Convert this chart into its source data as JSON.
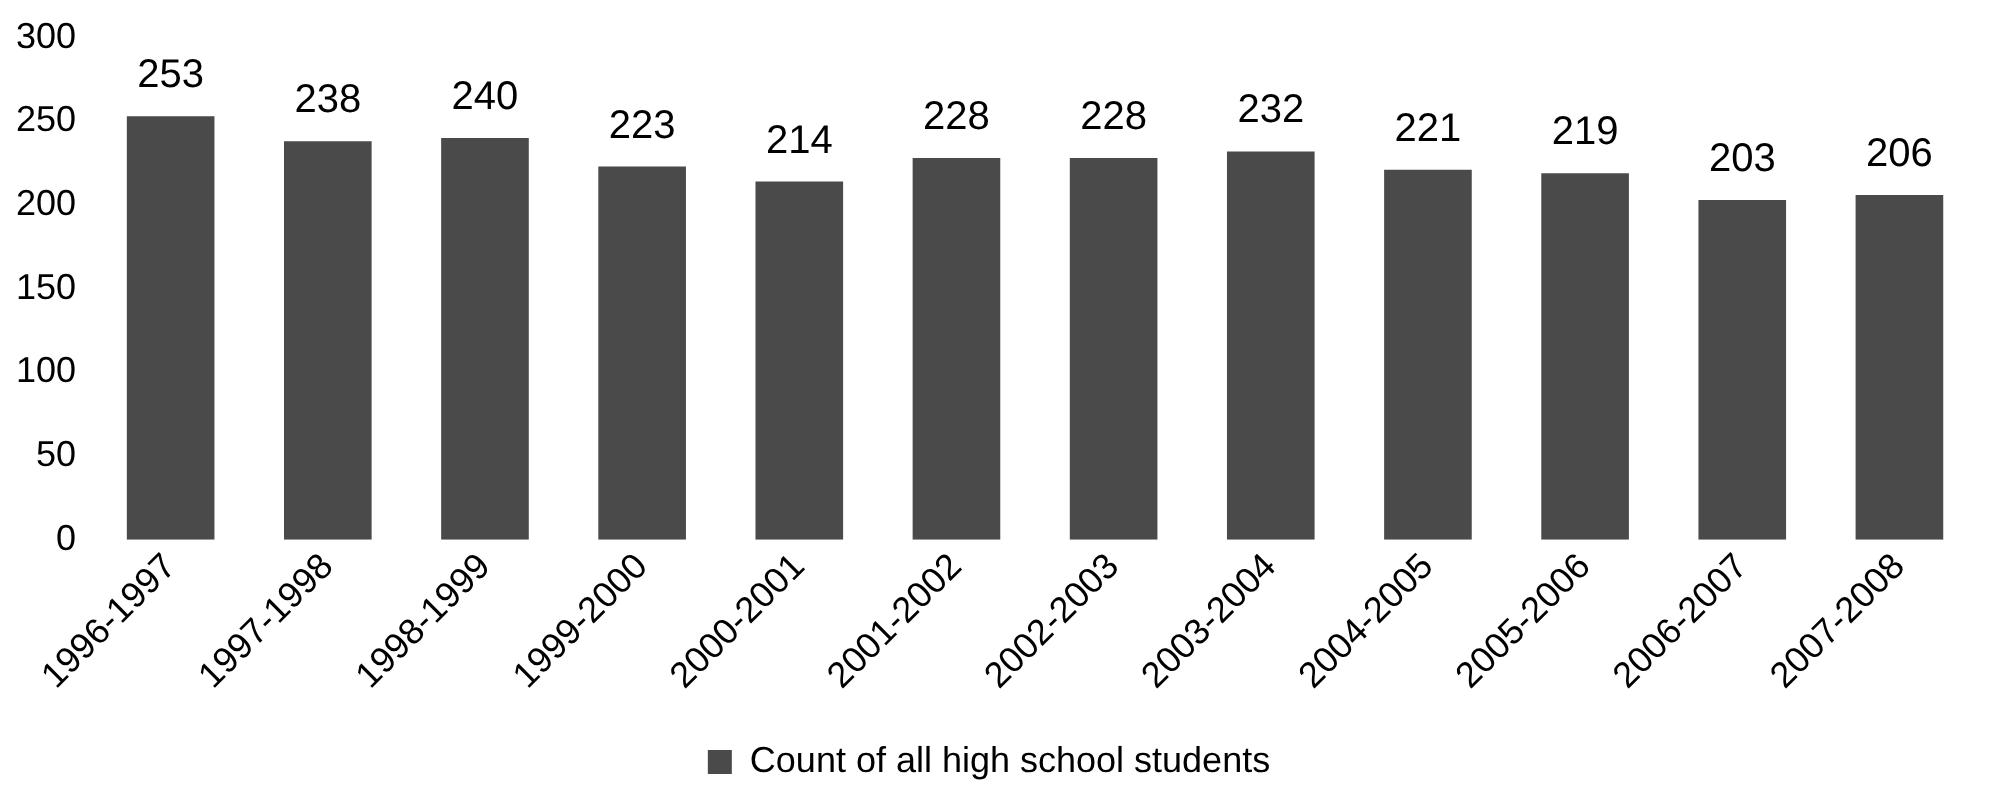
{
  "chart_data": {
    "type": "bar",
    "categories": [
      "1996-1997",
      "1997-1998",
      "1998-1999",
      "1999-2000",
      "2000-2001",
      "2001-2002",
      "2002-2003",
      "2003-2004",
      "2004-2005",
      "2005-2006",
      "2006-2007",
      "2007-2008"
    ],
    "series": [
      {
        "name": "Count of all high school students",
        "color": "#4a4a4a",
        "values": [
          253,
          238,
          240,
          223,
          214,
          228,
          228,
          232,
          221,
          219,
          203,
          206
        ]
      }
    ],
    "ylim": [
      0,
      300
    ],
    "yticks": [
      0,
      50,
      100,
      150,
      200,
      250,
      300
    ],
    "data_labels": true,
    "legend": "bottom",
    "grid": false
  }
}
